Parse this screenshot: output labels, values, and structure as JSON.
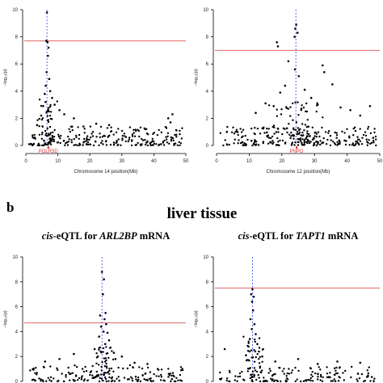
{
  "figure": {
    "panel_label_b": "b",
    "section_title": "liver tissue"
  },
  "chart_data": [
    {
      "id": "top-left",
      "type": "scatter",
      "title": "",
      "xlabel": "Chromosome 14 position(Mb)",
      "ylabel": "−log₁₀(p)",
      "xlim": [
        0,
        50
      ],
      "ylim": [
        0,
        10
      ],
      "xticks": [
        "0",
        "10",
        "20",
        "30",
        "40",
        "50"
      ],
      "yticks": [
        "0",
        "2",
        "4",
        "6",
        "8",
        "10"
      ],
      "threshold": 7.7,
      "gene_label": "POLR3D",
      "gene_pos": 7.0,
      "lead_x": 6.6,
      "points": [
        [
          6.6,
          9.8
        ],
        [
          6.4,
          7.7
        ],
        [
          6.8,
          7.6
        ],
        [
          7.1,
          7.2
        ],
        [
          6.9,
          6.6
        ],
        [
          6.5,
          5.4
        ],
        [
          7.3,
          4.9
        ],
        [
          6.2,
          4.4
        ],
        [
          7.6,
          4.0
        ],
        [
          5.9,
          3.8
        ],
        [
          8.2,
          3.5
        ],
        [
          9.0,
          3.0
        ],
        [
          5.4,
          2.9
        ],
        [
          10.5,
          2.6
        ],
        [
          12.0,
          2.3
        ],
        [
          4.8,
          2.2
        ],
        [
          15.0,
          2.0
        ],
        [
          22.0,
          1.6
        ],
        [
          44.5,
          2.0
        ],
        [
          45.2,
          1.7
        ],
        [
          45.8,
          2.3
        ],
        [
          26.0,
          1.5
        ],
        [
          3.5,
          1.5
        ],
        [
          18.0,
          1.4
        ]
      ],
      "cloud": {
        "xmin": 1,
        "xmax": 49,
        "ymax": 1.4,
        "n": 230,
        "seed": 11
      },
      "peak_cloud": {
        "center": 7.0,
        "width": 3.5,
        "ymax": 3.4,
        "n": 60,
        "seed": 21
      }
    },
    {
      "id": "top-right",
      "type": "scatter",
      "title": "",
      "xlabel": "Chromosome 12 position(Mb)",
      "ylabel": "−log₁₀(p)",
      "xlim": [
        0,
        50
      ],
      "ylim": [
        0,
        10
      ],
      "xticks": [
        "0",
        "10",
        "20",
        "30",
        "40",
        "50"
      ],
      "yticks": [
        "0",
        "2",
        "4",
        "6",
        "8",
        "10"
      ],
      "threshold": 7.0,
      "gene_label": "PNPO",
      "gene_pos": 24.5,
      "lead_x": 24.3,
      "points": [
        [
          24.4,
          8.9
        ],
        [
          24.1,
          8.6
        ],
        [
          24.8,
          8.3
        ],
        [
          23.9,
          8.0
        ],
        [
          18.5,
          7.6
        ],
        [
          18.8,
          7.3
        ],
        [
          22.0,
          6.2
        ],
        [
          24.0,
          5.6
        ],
        [
          25.2,
          5.1
        ],
        [
          32.5,
          5.9
        ],
        [
          33.0,
          5.4
        ],
        [
          35.5,
          4.5
        ],
        [
          21.0,
          4.4
        ],
        [
          19.5,
          3.9
        ],
        [
          27.0,
          4.1
        ],
        [
          29.0,
          3.5
        ],
        [
          15.0,
          3.1
        ],
        [
          17.5,
          2.9
        ],
        [
          26.0,
          2.7
        ],
        [
          31.0,
          3.0
        ],
        [
          38.0,
          2.8
        ],
        [
          41.0,
          2.6
        ],
        [
          44.0,
          2.2
        ],
        [
          47.0,
          2.9
        ],
        [
          12.0,
          2.4
        ]
      ],
      "cloud": {
        "xmin": 1,
        "xmax": 49,
        "ymax": 1.4,
        "n": 230,
        "seed": 31
      },
      "peak_cloud": {
        "center": 24.0,
        "width": 11.0,
        "ymax": 3.2,
        "n": 80,
        "seed": 41
      }
    },
    {
      "id": "bottom-left",
      "type": "scatter",
      "title": "cis-eQTL for ARL2BP mRNA",
      "title_parts": [
        {
          "t": "cis",
          "i": true
        },
        {
          "t": "-eQTL for ",
          "i": false
        },
        {
          "t": "ARL2BP",
          "i": true
        },
        {
          "t": " mRNA",
          "i": false
        }
      ],
      "xlabel": "",
      "ylabel": "−log₁₀(p)",
      "xlim": [
        0,
        50
      ],
      "ylim": [
        0,
        10
      ],
      "yticks": [
        "0",
        "2",
        "4",
        "6",
        "8",
        "10"
      ],
      "threshold": 4.7,
      "lead_x": 23.8,
      "points": [
        [
          23.8,
          8.8
        ],
        [
          24.4,
          8.2
        ],
        [
          24.1,
          7.0
        ],
        [
          24.9,
          5.5
        ],
        [
          23.2,
          5.3
        ],
        [
          24.6,
          5.0
        ],
        [
          25.1,
          4.6
        ],
        [
          23.5,
          4.4
        ],
        [
          24.3,
          4.0
        ],
        [
          25.5,
          3.9
        ],
        [
          22.9,
          3.6
        ],
        [
          26.0,
          3.3
        ],
        [
          24.8,
          3.0
        ],
        [
          21.5,
          2.6
        ],
        [
          27.5,
          2.3
        ],
        [
          22.5,
          2.0
        ],
        [
          28.0,
          1.8
        ],
        [
          10.5,
          1.8
        ],
        [
          15.0,
          2.2
        ],
        [
          30.0,
          2.0
        ],
        [
          34.0,
          1.5
        ],
        [
          6.0,
          1.6
        ],
        [
          38.0,
          1.4
        ]
      ],
      "cloud": {
        "xmin": 1,
        "xmax": 49,
        "ymax": 1.3,
        "n": 170,
        "seed": 51
      },
      "peak_cloud": {
        "center": 24.5,
        "width": 4.0,
        "ymax": 3.0,
        "n": 40,
        "seed": 61
      }
    },
    {
      "id": "bottom-right",
      "type": "scatter",
      "title": "cis-eQTL for TAPT1 mRNA",
      "title_parts": [
        {
          "t": "cis",
          "i": true
        },
        {
          "t": "-eQTL for ",
          "i": false
        },
        {
          "t": "TAPT1",
          "i": true
        },
        {
          "t": " mRNA",
          "i": false
        }
      ],
      "xlabel": "",
      "ylabel": "−log₁₀(p)",
      "xlim": [
        0,
        50
      ],
      "ylim": [
        0,
        10
      ],
      "yticks": [
        "0",
        "2",
        "4",
        "6",
        "8",
        "10"
      ],
      "threshold": 7.5,
      "lead_x": 11.0,
      "points": [
        [
          11.0,
          7.4
        ],
        [
          10.6,
          7.0
        ],
        [
          11.4,
          6.8
        ],
        [
          10.9,
          6.4
        ],
        [
          11.2,
          5.7
        ],
        [
          10.4,
          5.0
        ],
        [
          11.6,
          4.6
        ],
        [
          10.8,
          4.2
        ],
        [
          12.0,
          3.8
        ],
        [
          10.2,
          3.4
        ],
        [
          12.5,
          3.0
        ],
        [
          9.8,
          2.8
        ],
        [
          13.0,
          2.4
        ],
        [
          9.0,
          2.1
        ],
        [
          14.0,
          2.0
        ],
        [
          2.5,
          2.6
        ],
        [
          18.0,
          1.6
        ],
        [
          25.0,
          1.8
        ],
        [
          31.0,
          1.4
        ],
        [
          37.0,
          1.6
        ],
        [
          44.0,
          1.5
        ]
      ],
      "cloud": {
        "xmin": 1,
        "xmax": 49,
        "ymax": 1.2,
        "n": 150,
        "seed": 71
      },
      "peak_cloud": {
        "center": 11.5,
        "width": 3.5,
        "ymax": 3.6,
        "n": 45,
        "seed": 81
      }
    }
  ]
}
